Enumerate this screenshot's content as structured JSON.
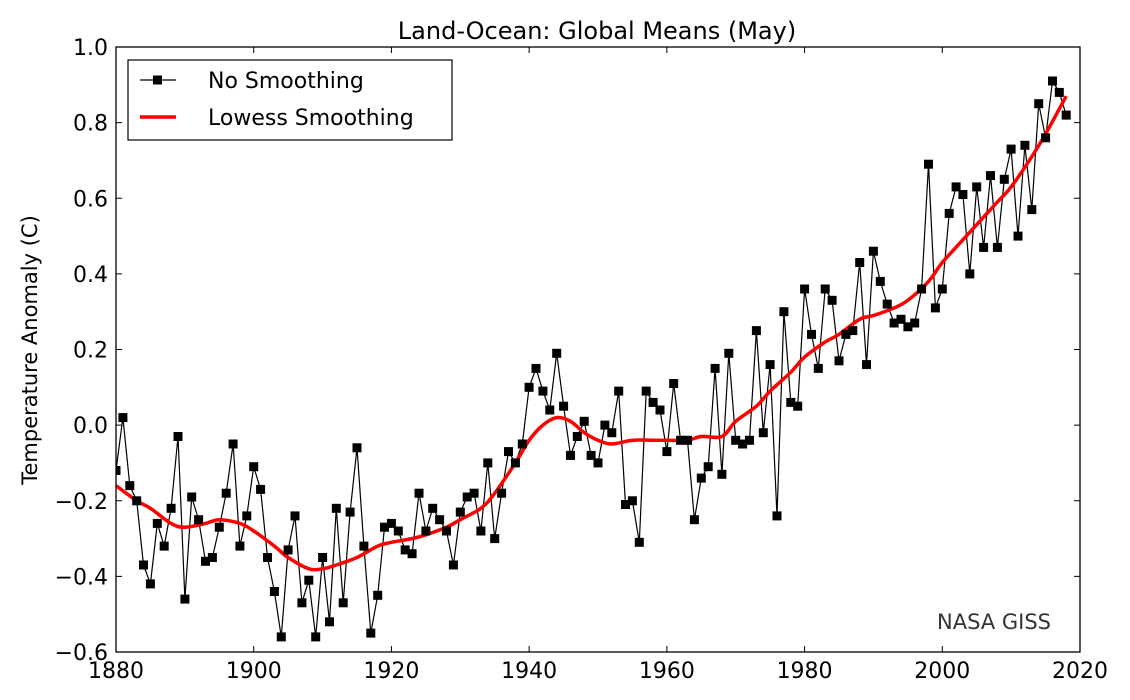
{
  "chart_data": {
    "type": "line",
    "title": "Land-Ocean: Global Means (May)",
    "xlabel": "",
    "ylabel": "Temperature Anomaly (C)",
    "xlim": [
      1880,
      2020
    ],
    "ylim": [
      -0.6,
      1.0
    ],
    "x_ticks": [
      "1880",
      "1900",
      "1920",
      "1940",
      "1960",
      "1980",
      "2000",
      "2020"
    ],
    "x_tick_values": [
      1880,
      1900,
      1920,
      1940,
      1960,
      1980,
      2000,
      2020
    ],
    "y_ticks": [
      "−0.6",
      "−0.4",
      "−0.2",
      "0.0",
      "0.2",
      "0.4",
      "0.6",
      "0.8",
      "1.0"
    ],
    "y_tick_values": [
      -0.6,
      -0.4,
      -0.2,
      0.0,
      0.2,
      0.4,
      0.6,
      0.8,
      1.0
    ],
    "grid": false,
    "legend_position": "top-left",
    "annotation": "NASA GISS",
    "series": [
      {
        "name": "No Smoothing",
        "color": "#000000",
        "marker": "square",
        "x": [
          1880,
          1881,
          1882,
          1883,
          1884,
          1885,
          1886,
          1887,
          1888,
          1889,
          1890,
          1891,
          1892,
          1893,
          1894,
          1895,
          1896,
          1897,
          1898,
          1899,
          1900,
          1901,
          1902,
          1903,
          1904,
          1905,
          1906,
          1907,
          1908,
          1909,
          1910,
          1911,
          1912,
          1913,
          1914,
          1915,
          1916,
          1917,
          1918,
          1919,
          1920,
          1921,
          1922,
          1923,
          1924,
          1925,
          1926,
          1927,
          1928,
          1929,
          1930,
          1931,
          1932,
          1933,
          1934,
          1935,
          1936,
          1937,
          1938,
          1939,
          1940,
          1941,
          1942,
          1943,
          1944,
          1945,
          1946,
          1947,
          1948,
          1949,
          1950,
          1951,
          1952,
          1953,
          1954,
          1955,
          1956,
          1957,
          1958,
          1959,
          1960,
          1961,
          1962,
          1963,
          1964,
          1965,
          1966,
          1967,
          1968,
          1969,
          1970,
          1971,
          1972,
          1973,
          1974,
          1975,
          1976,
          1977,
          1978,
          1979,
          1980,
          1981,
          1982,
          1983,
          1984,
          1985,
          1986,
          1987,
          1988,
          1989,
          1990,
          1991,
          1992,
          1993,
          1994,
          1995,
          1996,
          1997,
          1998,
          1999,
          2000,
          2001,
          2002,
          2003,
          2004,
          2005,
          2006,
          2007,
          2008,
          2009,
          2010,
          2011,
          2012,
          2013,
          2014,
          2015,
          2016,
          2017,
          2018
        ],
        "values": [
          -0.12,
          0.02,
          -0.16,
          -0.2,
          -0.37,
          -0.42,
          -0.26,
          -0.32,
          -0.22,
          -0.03,
          -0.46,
          -0.19,
          -0.25,
          -0.36,
          -0.35,
          -0.27,
          -0.18,
          -0.05,
          -0.32,
          -0.24,
          -0.11,
          -0.17,
          -0.35,
          -0.44,
          -0.56,
          -0.33,
          -0.24,
          -0.47,
          -0.41,
          -0.56,
          -0.35,
          -0.52,
          -0.22,
          -0.47,
          -0.23,
          -0.06,
          -0.32,
          -0.55,
          -0.45,
          -0.27,
          -0.26,
          -0.28,
          -0.33,
          -0.34,
          -0.18,
          -0.28,
          -0.22,
          -0.25,
          -0.28,
          -0.37,
          -0.23,
          -0.19,
          -0.18,
          -0.28,
          -0.1,
          -0.3,
          -0.18,
          -0.07,
          -0.1,
          -0.05,
          0.1,
          0.15,
          0.09,
          0.04,
          0.19,
          0.05,
          -0.08,
          -0.03,
          0.01,
          -0.08,
          -0.1,
          0.0,
          -0.02,
          0.09,
          -0.21,
          -0.2,
          -0.31,
          0.09,
          0.06,
          0.04,
          -0.07,
          0.11,
          -0.04,
          -0.04,
          -0.25,
          -0.14,
          -0.11,
          0.15,
          -0.13,
          0.19,
          -0.04,
          -0.05,
          -0.04,
          0.25,
          -0.02,
          0.16,
          -0.24,
          0.3,
          0.06,
          0.05,
          0.36,
          0.24,
          0.15,
          0.36,
          0.33,
          0.17,
          0.24,
          0.25,
          0.43,
          0.16,
          0.46,
          0.38,
          0.32,
          0.27,
          0.28,
          0.26,
          0.27,
          0.36,
          0.69,
          0.31,
          0.36,
          0.56,
          0.63,
          0.61,
          0.4,
          0.63,
          0.47,
          0.66,
          0.47,
          0.65,
          0.73,
          0.5,
          0.74,
          0.57,
          0.85,
          0.76,
          0.91,
          0.88,
          0.82
        ]
      },
      {
        "name": "Lowess Smoothing",
        "color": "#ff0000",
        "marker": "none",
        "x": [
          1880,
          1883,
          1885,
          1888,
          1890,
          1893,
          1895,
          1898,
          1900,
          1903,
          1905,
          1908,
          1910,
          1912,
          1915,
          1918,
          1920,
          1923,
          1925,
          1928,
          1930,
          1933,
          1935,
          1938,
          1940,
          1942,
          1944,
          1946,
          1948,
          1950,
          1952,
          1955,
          1958,
          1960,
          1963,
          1965,
          1968,
          1970,
          1973,
          1975,
          1978,
          1980,
          1983,
          1985,
          1988,
          1990,
          1993,
          1995,
          1998,
          2000,
          2003,
          2005,
          2008,
          2010,
          2013,
          2015,
          2018
        ],
        "values": [
          -0.16,
          -0.2,
          -0.22,
          -0.26,
          -0.27,
          -0.26,
          -0.25,
          -0.26,
          -0.28,
          -0.32,
          -0.35,
          -0.38,
          -0.38,
          -0.37,
          -0.35,
          -0.32,
          -0.31,
          -0.3,
          -0.29,
          -0.27,
          -0.25,
          -0.22,
          -0.18,
          -0.1,
          -0.04,
          0.0,
          0.02,
          0.01,
          -0.02,
          -0.04,
          -0.05,
          -0.04,
          -0.04,
          -0.04,
          -0.04,
          -0.03,
          -0.03,
          0.01,
          0.05,
          0.09,
          0.14,
          0.18,
          0.22,
          0.24,
          0.28,
          0.29,
          0.31,
          0.33,
          0.38,
          0.43,
          0.49,
          0.53,
          0.59,
          0.63,
          0.71,
          0.77,
          0.87
        ]
      }
    ]
  }
}
